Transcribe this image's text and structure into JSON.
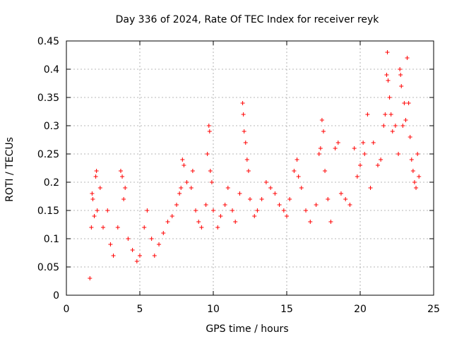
{
  "chart_data": {
    "type": "scatter",
    "title": "Day 336 of 2024, Rate Of TEC Index for receiver reyk",
    "xlabel": "GPS time / hours",
    "ylabel": "ROTI / TECUs",
    "xlim": [
      0,
      25
    ],
    "ylim": [
      0,
      0.45
    ],
    "x_ticks": [
      0,
      5,
      10,
      15,
      20,
      25
    ],
    "y_ticks": [
      0,
      0.05,
      0.1,
      0.15,
      0.2,
      0.25,
      0.3,
      0.35,
      0.4,
      0.45
    ],
    "x_tick_labels": [
      "0",
      "5",
      "10",
      "15",
      "20",
      "25"
    ],
    "y_tick_labels": [
      "0",
      "0.05",
      "0.1",
      "0.15",
      "0.2",
      "0.25",
      "0.3",
      "0.35",
      "0.4",
      "0.45"
    ],
    "grid": true,
    "marker": "plus",
    "color": "#ff0000",
    "series": [
      {
        "points": [
          [
            1.6,
            0.03
          ],
          [
            1.7,
            0.12
          ],
          [
            1.75,
            0.18
          ],
          [
            1.8,
            0.17
          ],
          [
            1.9,
            0.14
          ],
          [
            2.0,
            0.21
          ],
          [
            2.05,
            0.22
          ],
          [
            2.1,
            0.15
          ],
          [
            2.3,
            0.19
          ],
          [
            2.5,
            0.12
          ],
          [
            2.8,
            0.15
          ],
          [
            3.0,
            0.09
          ],
          [
            3.2,
            0.07
          ],
          [
            3.5,
            0.12
          ],
          [
            3.7,
            0.22
          ],
          [
            3.8,
            0.21
          ],
          [
            3.9,
            0.17
          ],
          [
            4.0,
            0.19
          ],
          [
            4.2,
            0.1
          ],
          [
            4.5,
            0.08
          ],
          [
            4.8,
            0.06
          ],
          [
            5.0,
            0.07
          ],
          [
            5.3,
            0.12
          ],
          [
            5.5,
            0.15
          ],
          [
            5.8,
            0.1
          ],
          [
            6.0,
            0.07
          ],
          [
            6.3,
            0.09
          ],
          [
            6.6,
            0.11
          ],
          [
            6.9,
            0.13
          ],
          [
            7.2,
            0.14
          ],
          [
            7.5,
            0.16
          ],
          [
            7.7,
            0.18
          ],
          [
            7.8,
            0.19
          ],
          [
            7.9,
            0.24
          ],
          [
            8.0,
            0.23
          ],
          [
            8.2,
            0.2
          ],
          [
            8.5,
            0.19
          ],
          [
            8.6,
            0.22
          ],
          [
            8.8,
            0.15
          ],
          [
            9.0,
            0.13
          ],
          [
            9.2,
            0.12
          ],
          [
            9.5,
            0.16
          ],
          [
            9.6,
            0.25
          ],
          [
            9.7,
            0.3
          ],
          [
            9.75,
            0.29
          ],
          [
            9.8,
            0.22
          ],
          [
            9.9,
            0.2
          ],
          [
            10.0,
            0.15
          ],
          [
            10.3,
            0.12
          ],
          [
            10.5,
            0.14
          ],
          [
            10.8,
            0.16
          ],
          [
            11.0,
            0.19
          ],
          [
            11.3,
            0.15
          ],
          [
            11.5,
            0.13
          ],
          [
            11.8,
            0.18
          ],
          [
            12.0,
            0.34
          ],
          [
            12.05,
            0.32
          ],
          [
            12.1,
            0.29
          ],
          [
            12.2,
            0.27
          ],
          [
            12.3,
            0.24
          ],
          [
            12.4,
            0.22
          ],
          [
            12.5,
            0.17
          ],
          [
            12.8,
            0.14
          ],
          [
            13.0,
            0.15
          ],
          [
            13.3,
            0.17
          ],
          [
            13.6,
            0.2
          ],
          [
            13.9,
            0.19
          ],
          [
            14.2,
            0.18
          ],
          [
            14.5,
            0.16
          ],
          [
            14.8,
            0.15
          ],
          [
            15.0,
            0.14
          ],
          [
            15.2,
            0.17
          ],
          [
            15.5,
            0.22
          ],
          [
            15.7,
            0.24
          ],
          [
            15.8,
            0.21
          ],
          [
            16.0,
            0.19
          ],
          [
            16.3,
            0.15
          ],
          [
            16.6,
            0.13
          ],
          [
            17.0,
            0.16
          ],
          [
            17.2,
            0.25
          ],
          [
            17.3,
            0.26
          ],
          [
            17.4,
            0.31
          ],
          [
            17.5,
            0.29
          ],
          [
            17.6,
            0.22
          ],
          [
            17.8,
            0.17
          ],
          [
            18.0,
            0.13
          ],
          [
            18.3,
            0.26
          ],
          [
            18.5,
            0.27
          ],
          [
            18.7,
            0.18
          ],
          [
            19.0,
            0.17
          ],
          [
            19.3,
            0.16
          ],
          [
            19.6,
            0.26
          ],
          [
            19.8,
            0.21
          ],
          [
            20.0,
            0.23
          ],
          [
            20.2,
            0.27
          ],
          [
            20.3,
            0.25
          ],
          [
            20.5,
            0.32
          ],
          [
            20.7,
            0.19
          ],
          [
            20.9,
            0.27
          ],
          [
            21.2,
            0.23
          ],
          [
            21.4,
            0.24
          ],
          [
            21.6,
            0.3
          ],
          [
            21.7,
            0.32
          ],
          [
            21.8,
            0.39
          ],
          [
            21.85,
            0.43
          ],
          [
            21.9,
            0.38
          ],
          [
            22.0,
            0.35
          ],
          [
            22.1,
            0.32
          ],
          [
            22.2,
            0.29
          ],
          [
            22.4,
            0.3
          ],
          [
            22.6,
            0.25
          ],
          [
            22.7,
            0.4
          ],
          [
            22.75,
            0.39
          ],
          [
            22.8,
            0.37
          ],
          [
            22.9,
            0.3
          ],
          [
            23.0,
            0.34
          ],
          [
            23.1,
            0.31
          ],
          [
            23.2,
            0.42
          ],
          [
            23.3,
            0.34
          ],
          [
            23.4,
            0.28
          ],
          [
            23.5,
            0.24
          ],
          [
            23.6,
            0.22
          ],
          [
            23.7,
            0.2
          ],
          [
            23.8,
            0.19
          ],
          [
            23.9,
            0.25
          ],
          [
            24.0,
            0.21
          ]
        ]
      }
    ]
  }
}
